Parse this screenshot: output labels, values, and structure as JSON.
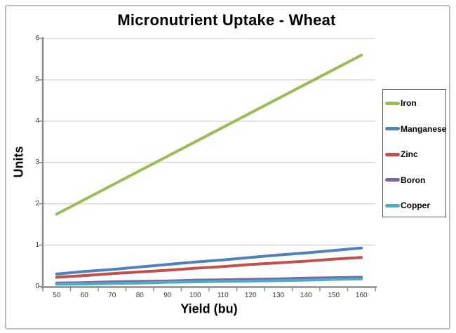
{
  "window": {
    "background": "#ffffff",
    "frame_border_color": "#bdbdbd"
  },
  "chart_data": {
    "type": "line",
    "title": "Micronutrient Uptake - Wheat",
    "xlabel": "Yield (bu)",
    "ylabel": "Units",
    "categories": [
      50,
      60,
      70,
      80,
      90,
      100,
      110,
      120,
      130,
      140,
      150,
      160
    ],
    "x_tick_labels": [
      "50",
      "60",
      "70",
      "80",
      "90",
      "100",
      "110",
      "120",
      "130",
      "140",
      "150",
      "160"
    ],
    "y_ticks": [
      0,
      1,
      2,
      3,
      4,
      5,
      6
    ],
    "y_tick_labels": [
      "0",
      "1",
      "2",
      "3",
      "4",
      "5",
      "6"
    ],
    "ylim": [
      0,
      6
    ],
    "grid": "horizontal",
    "legend_position": "right",
    "axis_color": "#8a8a8a",
    "gridline_color": "#c9c9c9",
    "series": [
      {
        "name": "Iron",
        "color": "#9BBB59",
        "values": [
          1.75,
          2.1,
          2.45,
          2.8,
          3.15,
          3.5,
          3.85,
          4.2,
          4.55,
          4.9,
          5.25,
          5.6
        ]
      },
      {
        "name": "Manganese",
        "color": "#4F81BD",
        "values": [
          0.3,
          0.36,
          0.41,
          0.47,
          0.53,
          0.59,
          0.64,
          0.7,
          0.76,
          0.81,
          0.87,
          0.93
        ]
      },
      {
        "name": "Zinc",
        "color": "#C0504D",
        "values": [
          0.22,
          0.26,
          0.31,
          0.35,
          0.39,
          0.44,
          0.48,
          0.53,
          0.57,
          0.61,
          0.66,
          0.7
        ]
      },
      {
        "name": "Boron",
        "color": "#8064A2",
        "values": [
          0.08,
          0.09,
          0.11,
          0.12,
          0.13,
          0.15,
          0.16,
          0.17,
          0.18,
          0.2,
          0.21,
          0.22
        ]
      },
      {
        "name": "Copper",
        "color": "#4BACC6",
        "values": [
          0.05,
          0.06,
          0.07,
          0.08,
          0.1,
          0.11,
          0.12,
          0.13,
          0.14,
          0.15,
          0.17,
          0.18
        ]
      }
    ]
  }
}
